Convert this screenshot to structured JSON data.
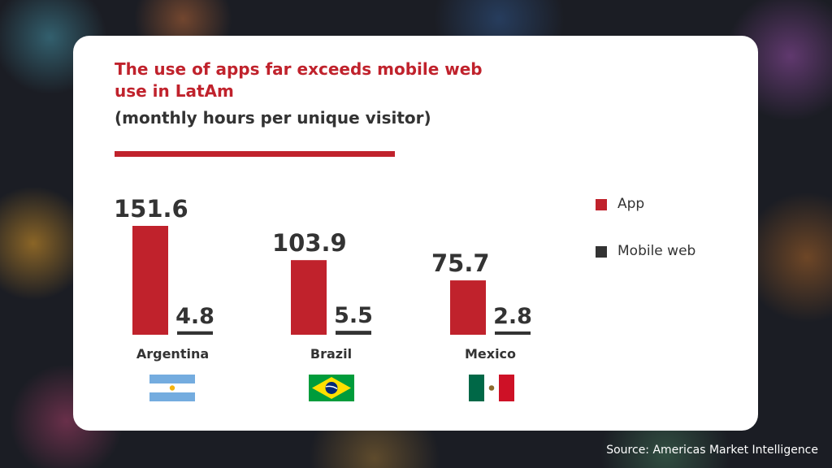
{
  "source": "Source: Americas Market Intelligence",
  "colors": {
    "app": "#c0222c",
    "mobile_web": "#333333",
    "title": "#c0222c"
  },
  "chart_data": {
    "type": "bar",
    "title": "The use of apps far exceeds mobile web use in LatAm",
    "subtitle": "(monthly hours per unique visitor)",
    "categories": [
      "Argentina",
      "Brazil",
      "Mexico"
    ],
    "series": [
      {
        "name": "App",
        "values": [
          151.6,
          103.9,
          75.7
        ]
      },
      {
        "name": "Mobile web",
        "values": [
          4.8,
          5.5,
          2.8
        ]
      }
    ],
    "value_labels": {
      "App": [
        "151.6",
        "103.9",
        "75.7"
      ],
      "Mobile web": [
        "4.8",
        "5.5",
        "2.8"
      ]
    },
    "xlabel": "",
    "ylabel": "",
    "ylim": [
      0,
      151.6
    ],
    "grid": false,
    "legend_position": "right",
    "flags": [
      "argentina-flag-icon",
      "brazil-flag-icon",
      "mexico-flag-icon"
    ]
  }
}
